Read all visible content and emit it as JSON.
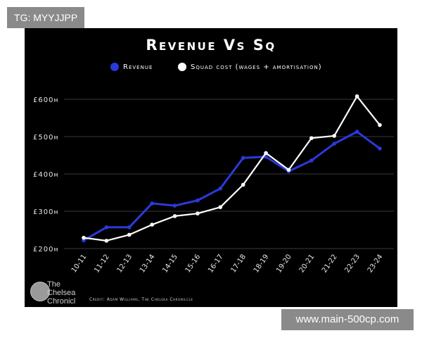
{
  "watermark_top": "TG: MYYJJPP",
  "watermark_bottom": "www.main-500cp.com",
  "logo_lines": [
    "The",
    "Chelsea",
    "Chronicl"
  ],
  "credit": "Credit: Adam Williams, The Chelsea Chronilcle",
  "colors": {
    "revenue": "#2b39d9",
    "squad_cost": "#ffffff",
    "background": "#000000",
    "grid": "#3a3a3a"
  },
  "chart_data": {
    "type": "line",
    "title": "Revenue Vs Sq",
    "xlabel": "",
    "ylabel": "",
    "categories": [
      "10-11",
      "11-12",
      "12-13",
      "13-14",
      "14-15",
      "15-16",
      "16-17",
      "17-18",
      "18-19",
      "19-20",
      "20-21",
      "21-22",
      "22-23",
      "23-24"
    ],
    "y_ticks": [
      200,
      300,
      400,
      500,
      600
    ],
    "y_tick_labels": [
      "£200m",
      "£300m",
      "£400m",
      "£500m",
      "£600m"
    ],
    "ylim": [
      200,
      600
    ],
    "grid": true,
    "legend_position": "top",
    "series": [
      {
        "name": "Revenue",
        "color": "#2b39d9",
        "values": [
          222,
          257,
          257,
          321,
          315,
          329,
          361,
          443,
          446,
          407,
          436,
          481,
          513,
          468
        ]
      },
      {
        "name": "Squad cost (wages + amortisation)",
        "color": "#ffffff",
        "values": [
          229,
          221,
          237,
          264,
          287,
          294,
          311,
          371,
          456,
          411,
          496,
          502,
          608,
          531
        ]
      }
    ]
  }
}
